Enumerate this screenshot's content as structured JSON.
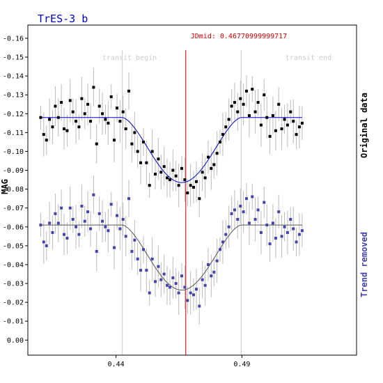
{
  "title": "TrES-3 b",
  "colors": {
    "title": "#0000cc",
    "jdmid": "#cc0000",
    "original_points": "#000000",
    "original_fit": "#0000cc",
    "trend_points": "#4444aa",
    "trend_fit": "#555555",
    "error_bars": "#bbbbbb",
    "transit_lines": "#cccccc"
  },
  "chart_data": {
    "type": "scatter",
    "title": "TrES-3 b",
    "ylabel": "MAG",
    "xlabel": "",
    "x_ticks": [
      "0.44",
      "0.49"
    ],
    "y_ticks": [
      "-0.16",
      "-0.15",
      "-0.14",
      "-0.13",
      "-0.12",
      "-0.11",
      "-0.10",
      "-0.09",
      "-0.08",
      "-0.07",
      "-0.06",
      "-0.05",
      "-0.04",
      "-0.03",
      "-0.02",
      "-0.01",
      "0.00"
    ],
    "xlim": [
      0.405,
      0.5355
    ],
    "ylim": [
      -0.167,
      0.008
    ],
    "y_inverted": true,
    "grid": false,
    "transit_begin": 0.4425,
    "transit_end": 0.4897,
    "jdmid": 0.4677,
    "annotations": {
      "transit_begin": "transit begin",
      "transit_end": "transit end",
      "jdmid": "JDmid: 0.46770999999717"
    },
    "side_labels": {
      "original": "Original data",
      "trend": "Trend removed"
    },
    "series": [
      {
        "name": "Original data",
        "baseline": -0.118,
        "depth": 0.0345,
        "points": [
          [
            0.4101,
            -0.118
          ],
          [
            0.4113,
            -0.109
          ],
          [
            0.4124,
            -0.106
          ],
          [
            0.4136,
            -0.117
          ],
          [
            0.4148,
            -0.113
          ],
          [
            0.4159,
            -0.124
          ],
          [
            0.4171,
            -0.118
          ],
          [
            0.4183,
            -0.126
          ],
          [
            0.4194,
            -0.112
          ],
          [
            0.4206,
            -0.111
          ],
          [
            0.4218,
            -0.127
          ],
          [
            0.4229,
            -0.121
          ],
          [
            0.4241,
            -0.116
          ],
          [
            0.4253,
            -0.113
          ],
          [
            0.4264,
            -0.128
          ],
          [
            0.4276,
            -0.12
          ],
          [
            0.4288,
            -0.125
          ],
          [
            0.4299,
            -0.116
          ],
          [
            0.4311,
            -0.134
          ],
          [
            0.4323,
            -0.104
          ],
          [
            0.4334,
            -0.124
          ],
          [
            0.4346,
            -0.12
          ],
          [
            0.4358,
            -0.117
          ],
          [
            0.4369,
            -0.115
          ],
          [
            0.4381,
            -0.129
          ],
          [
            0.4393,
            -0.106
          ],
          [
            0.4404,
            -0.123
          ],
          [
            0.4416,
            -0.116
          ],
          [
            0.4428,
            -0.121
          ],
          [
            0.4439,
            -0.112
          ],
          [
            0.4451,
            -0.132
          ],
          [
            0.4463,
            -0.104
          ],
          [
            0.4474,
            -0.11
          ],
          [
            0.4486,
            -0.1
          ],
          [
            0.4498,
            -0.094
          ],
          [
            0.4509,
            -0.105
          ],
          [
            0.4521,
            -0.094
          ],
          [
            0.4533,
            -0.082
          ],
          [
            0.4544,
            -0.1
          ],
          [
            0.4556,
            -0.088
          ],
          [
            0.4568,
            -0.096
          ],
          [
            0.4579,
            -0.089
          ],
          [
            0.4591,
            -0.092
          ],
          [
            0.4603,
            -0.086
          ],
          [
            0.4614,
            -0.085
          ],
          [
            0.4626,
            -0.09
          ],
          [
            0.4638,
            -0.087
          ],
          [
            0.4649,
            -0.082
          ],
          [
            0.4661,
            -0.091
          ],
          [
            0.4673,
            -0.085
          ],
          [
            0.4684,
            -0.078
          ],
          [
            0.4696,
            -0.082
          ],
          [
            0.4708,
            -0.081
          ],
          [
            0.4719,
            -0.084
          ],
          [
            0.4731,
            -0.075
          ],
          [
            0.4743,
            -0.089
          ],
          [
            0.4754,
            -0.086
          ],
          [
            0.4766,
            -0.097
          ],
          [
            0.4778,
            -0.091
          ],
          [
            0.4789,
            -0.093
          ],
          [
            0.4801,
            -0.099
          ],
          [
            0.4813,
            -0.105
          ],
          [
            0.4824,
            -0.109
          ],
          [
            0.4836,
            -0.113
          ],
          [
            0.4848,
            -0.117
          ],
          [
            0.4859,
            -0.124
          ],
          [
            0.4871,
            -0.126
          ],
          [
            0.4883,
            -0.121
          ],
          [
            0.4894,
            -0.128
          ],
          [
            0.4906,
            -0.125
          ],
          [
            0.4918,
            -0.132
          ],
          [
            0.4929,
            -0.119
          ],
          [
            0.4941,
            -0.133
          ],
          [
            0.4953,
            -0.121
          ],
          [
            0.4964,
            -0.126
          ],
          [
            0.4976,
            -0.114
          ],
          [
            0.4988,
            -0.13
          ],
          [
            0.4999,
            -0.118
          ],
          [
            0.5011,
            -0.108
          ],
          [
            0.5023,
            -0.119
          ],
          [
            0.5034,
            -0.111
          ],
          [
            0.5046,
            -0.125
          ],
          [
            0.5058,
            -0.112
          ],
          [
            0.5069,
            -0.117
          ],
          [
            0.5081,
            -0.114
          ],
          [
            0.5093,
            -0.121
          ],
          [
            0.5104,
            -0.116
          ],
          [
            0.5116,
            -0.109
          ],
          [
            0.5128,
            -0.113
          ],
          [
            0.5139,
            -0.115
          ]
        ]
      },
      {
        "name": "Trend removed",
        "baseline": -0.061,
        "depth": 0.0345,
        "points": [
          [
            0.4101,
            -0.061
          ],
          [
            0.4113,
            -0.052
          ],
          [
            0.4124,
            -0.05
          ],
          [
            0.4136,
            -0.062
          ],
          [
            0.4148,
            -0.057
          ],
          [
            0.4159,
            -0.067
          ],
          [
            0.4171,
            -0.062
          ],
          [
            0.4183,
            -0.07
          ],
          [
            0.4194,
            -0.056
          ],
          [
            0.4206,
            -0.054
          ],
          [
            0.4218,
            -0.07
          ],
          [
            0.4229,
            -0.064
          ],
          [
            0.4241,
            -0.06
          ],
          [
            0.4253,
            -0.056
          ],
          [
            0.4264,
            -0.071
          ],
          [
            0.4276,
            -0.063
          ],
          [
            0.4288,
            -0.068
          ],
          [
            0.4299,
            -0.059
          ],
          [
            0.4311,
            -0.077
          ],
          [
            0.4323,
            -0.047
          ],
          [
            0.4334,
            -0.067
          ],
          [
            0.4346,
            -0.063
          ],
          [
            0.4358,
            -0.06
          ],
          [
            0.4369,
            -0.058
          ],
          [
            0.4381,
            -0.072
          ],
          [
            0.4393,
            -0.049
          ],
          [
            0.4404,
            -0.066
          ],
          [
            0.4416,
            -0.059
          ],
          [
            0.4428,
            -0.064
          ],
          [
            0.4439,
            -0.055
          ],
          [
            0.4451,
            -0.075
          ],
          [
            0.4463,
            -0.047
          ],
          [
            0.4474,
            -0.053
          ],
          [
            0.4486,
            -0.043
          ],
          [
            0.4498,
            -0.037
          ],
          [
            0.4509,
            -0.048
          ],
          [
            0.4521,
            -0.037
          ],
          [
            0.4533,
            -0.025
          ],
          [
            0.4544,
            -0.043
          ],
          [
            0.4556,
            -0.031
          ],
          [
            0.4568,
            -0.039
          ],
          [
            0.4579,
            -0.032
          ],
          [
            0.4591,
            -0.035
          ],
          [
            0.4603,
            -0.029
          ],
          [
            0.4614,
            -0.028
          ],
          [
            0.4626,
            -0.033
          ],
          [
            0.4638,
            -0.03
          ],
          [
            0.4649,
            -0.025
          ],
          [
            0.4661,
            -0.034
          ],
          [
            0.4673,
            -0.028
          ],
          [
            0.4684,
            -0.021
          ],
          [
            0.4696,
            -0.025
          ],
          [
            0.4708,
            -0.024
          ],
          [
            0.4719,
            -0.027
          ],
          [
            0.4731,
            -0.018
          ],
          [
            0.4743,
            -0.032
          ],
          [
            0.4754,
            -0.029
          ],
          [
            0.4766,
            -0.04
          ],
          [
            0.4778,
            -0.034
          ],
          [
            0.4789,
            -0.036
          ],
          [
            0.4801,
            -0.042
          ],
          [
            0.4813,
            -0.048
          ],
          [
            0.4824,
            -0.052
          ],
          [
            0.4836,
            -0.056
          ],
          [
            0.4848,
            -0.06
          ],
          [
            0.4859,
            -0.067
          ],
          [
            0.4871,
            -0.069
          ],
          [
            0.4883,
            -0.064
          ],
          [
            0.4894,
            -0.071
          ],
          [
            0.4906,
            -0.068
          ],
          [
            0.4918,
            -0.075
          ],
          [
            0.4929,
            -0.062
          ],
          [
            0.4941,
            -0.076
          ],
          [
            0.4953,
            -0.064
          ],
          [
            0.4964,
            -0.069
          ],
          [
            0.4976,
            -0.057
          ],
          [
            0.4988,
            -0.073
          ],
          [
            0.4999,
            -0.061
          ],
          [
            0.5011,
            -0.051
          ],
          [
            0.5023,
            -0.062
          ],
          [
            0.5034,
            -0.054
          ],
          [
            0.5046,
            -0.068
          ],
          [
            0.5058,
            -0.055
          ],
          [
            0.5069,
            -0.06
          ],
          [
            0.5081,
            -0.057
          ],
          [
            0.5093,
            -0.064
          ],
          [
            0.5104,
            -0.059
          ],
          [
            0.5116,
            -0.052
          ],
          [
            0.5128,
            -0.056
          ],
          [
            0.5139,
            -0.058
          ]
        ]
      }
    ]
  }
}
